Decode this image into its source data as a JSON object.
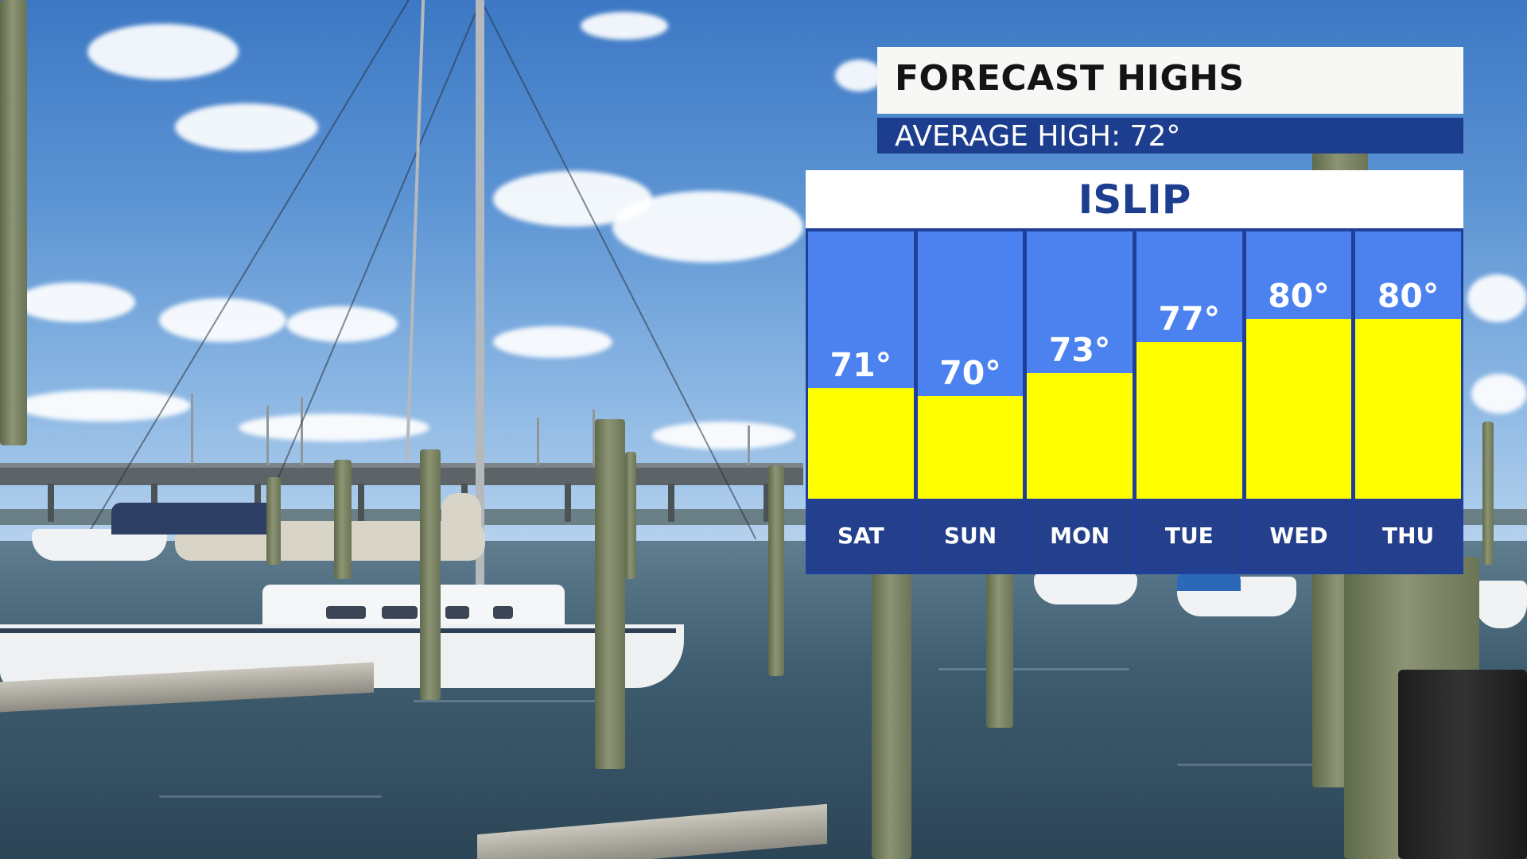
{
  "graphic": {
    "title": "FORECAST HIGHS",
    "subtitle": "AVERAGE HIGH: 72°",
    "location": "ISLIP"
  },
  "colors": {
    "title_bg": "#f7f7f5",
    "navy": "#1d3d8f",
    "column_blue": "#4c82f0",
    "bar_yellow": "#ffff00",
    "day_band": "#243f8c"
  },
  "chart_data": {
    "type": "bar",
    "title": "FORECAST HIGHS",
    "subtitle": "AVERAGE HIGH: 72°",
    "location": "ISLIP",
    "categories": [
      "SAT",
      "SUN",
      "MON",
      "TUE",
      "WED",
      "THU"
    ],
    "values": [
      71,
      70,
      73,
      77,
      80,
      80
    ],
    "value_labels": [
      "71°",
      "70°",
      "73°",
      "77°",
      "80°",
      "80°"
    ],
    "unit": "°",
    "ylim": [
      60,
      80
    ],
    "grid": false,
    "legend": "none"
  }
}
